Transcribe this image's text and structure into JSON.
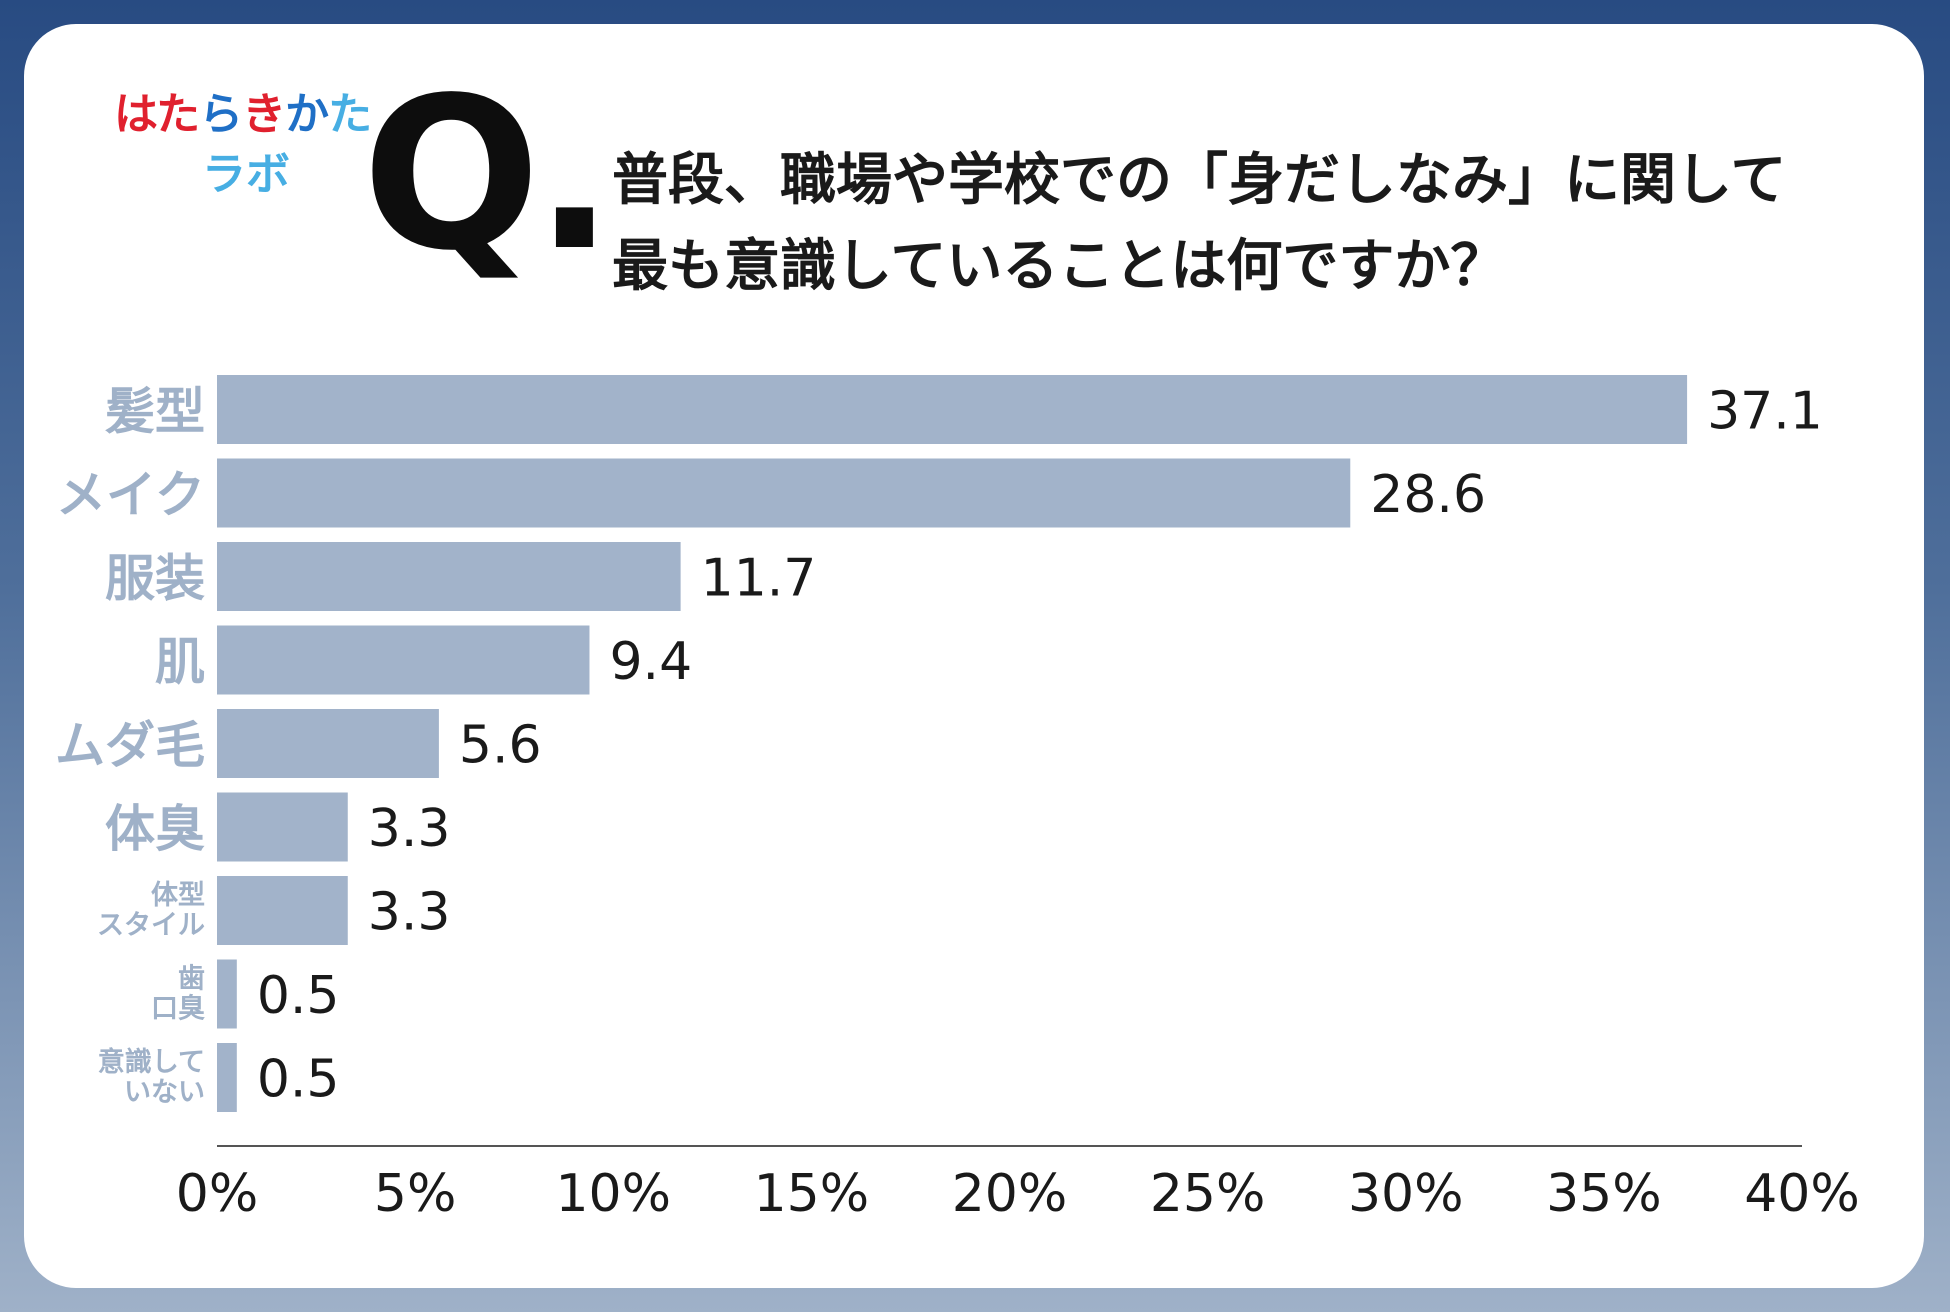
{
  "logo": {
    "line1": "はたらきかた",
    "line2": "ラボ"
  },
  "question": {
    "mark": "Q.",
    "line1": "普段、職場や学校での「身だしなみ」に関して",
    "line2": "最も意識していることは何ですか？"
  },
  "colors": {
    "bar": "#a2b3ca",
    "category_label": "#9fb1c8",
    "frame_top": "#284b82",
    "frame_bottom": "#9fb1c8"
  },
  "chart_data": {
    "type": "bar",
    "orientation": "horizontal",
    "title": "",
    "xlabel": "",
    "ylabel": "",
    "categories": [
      [
        "髪型"
      ],
      [
        "メイク"
      ],
      [
        "服装"
      ],
      [
        "肌"
      ],
      [
        "ムダ毛"
      ],
      [
        "体臭"
      ],
      [
        "体型",
        "スタイル"
      ],
      [
        "歯",
        "口臭"
      ],
      [
        "意識して",
        "いない"
      ]
    ],
    "values": [
      37.1,
      28.6,
      11.7,
      9.4,
      5.6,
      3.3,
      3.3,
      0.5,
      0.5
    ],
    "value_labels": [
      "37.1",
      "28.6",
      "11.7",
      "9.4",
      "5.6",
      "3.3",
      "3.3",
      "0.5",
      "0.5"
    ],
    "xlim": [
      0,
      40
    ],
    "xticks": [
      0,
      5,
      10,
      15,
      20,
      25,
      30,
      35,
      40
    ],
    "xtick_labels": [
      "0%",
      "5%",
      "10%",
      "15%",
      "20%",
      "25%",
      "30%",
      "35%",
      "40%"
    ],
    "grid": false,
    "legend": "none"
  }
}
